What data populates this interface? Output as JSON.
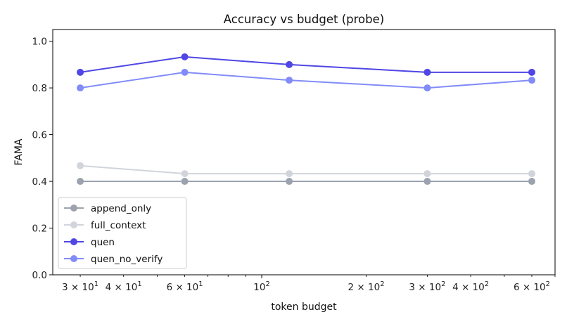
{
  "chart_data": {
    "type": "line",
    "title": "Accuracy vs budget (probe)",
    "xlabel": "token budget",
    "ylabel": "FAMA",
    "xscale": "log",
    "xlim": [
      25,
      700
    ],
    "ylim": [
      0,
      1.05
    ],
    "x": [
      30,
      60,
      120,
      300,
      600
    ],
    "x_ticks": [
      {
        "value": 30,
        "base": "3 × 10",
        "exp": "1"
      },
      {
        "value": 40,
        "base": "4 × 10",
        "exp": "1"
      },
      {
        "value": 60,
        "base": "6 × 10",
        "exp": "1"
      },
      {
        "value": 100,
        "base": "10",
        "exp": "2"
      },
      {
        "value": 200,
        "base": "2 × 10",
        "exp": "2"
      },
      {
        "value": 300,
        "base": "3 × 10",
        "exp": "2"
      },
      {
        "value": 400,
        "base": "4 × 10",
        "exp": "2"
      },
      {
        "value": 600,
        "base": "6 × 10",
        "exp": "2"
      }
    ],
    "y_ticks": [
      "0.0",
      "0.2",
      "0.4",
      "0.6",
      "0.8",
      "1.0"
    ],
    "grid": false,
    "legend_position": "lower-left",
    "series": [
      {
        "name": "append_only",
        "color": "#9ca3af",
        "values": [
          0.4,
          0.4,
          0.4,
          0.4,
          0.4
        ]
      },
      {
        "name": "full_context",
        "color": "#d1d5db",
        "values": [
          0.467,
          0.433,
          0.433,
          0.433,
          0.433
        ]
      },
      {
        "name": "quen",
        "color": "#4f46e5",
        "values": [
          0.867,
          0.933,
          0.9,
          0.867,
          0.867
        ]
      },
      {
        "name": "quen_no_verify",
        "color": "#818cf8",
        "values": [
          0.8,
          0.867,
          0.833,
          0.8,
          0.833
        ]
      }
    ]
  }
}
